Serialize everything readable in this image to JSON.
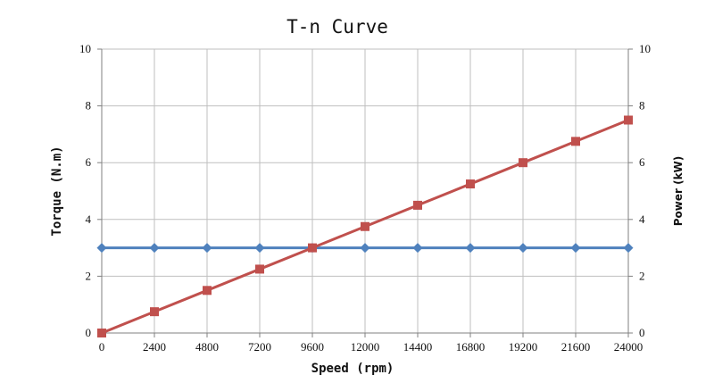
{
  "chart_data": {
    "type": "line",
    "title": "T-n Curve",
    "xlabel": "Speed (rpm)",
    "ylabel_left": "Torque (N.m)",
    "ylabel_right": "Power (kW)",
    "x": [
      0,
      2400,
      4800,
      7200,
      9600,
      12000,
      14400,
      16800,
      19200,
      21600,
      24000
    ],
    "x_tick_labels": [
      "0",
      "2400",
      "4800",
      "7200",
      "9600",
      "12000",
      "14400",
      "16800",
      "19200",
      "21600",
      "24000"
    ],
    "y_left_ticks": [
      "0",
      "2",
      "4",
      "6",
      "8",
      "10"
    ],
    "y_right_ticks": [
      "0",
      "2",
      "4",
      "6",
      "8",
      "10"
    ],
    "ylim_left": [
      0,
      10
    ],
    "ylim_right": [
      0,
      10
    ],
    "grid": true,
    "legend": "none",
    "series": [
      {
        "axis": "left",
        "color": "#4f81bd",
        "marker": "diamond",
        "values": [
          3,
          3,
          3,
          3,
          3,
          3,
          3,
          3,
          3,
          3,
          3
        ]
      },
      {
        "axis": "right",
        "color": "#c0504d",
        "marker": "square",
        "values": [
          0,
          0.75,
          1.5,
          2.25,
          3.0,
          3.75,
          4.5,
          5.25,
          6.0,
          6.75,
          7.5
        ]
      }
    ]
  }
}
